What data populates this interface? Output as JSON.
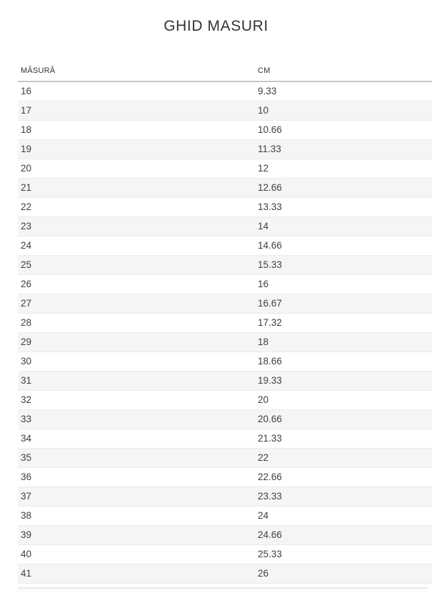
{
  "title": "GHID MASURI",
  "table": {
    "columns": [
      "MĂSURĂ",
      "CM"
    ],
    "rows": [
      [
        "16",
        "9.33"
      ],
      [
        "17",
        "10"
      ],
      [
        "18",
        "10.66"
      ],
      [
        "19",
        "11.33"
      ],
      [
        "20",
        "12"
      ],
      [
        "21",
        "12.66"
      ],
      [
        "22",
        "13.33"
      ],
      [
        "23",
        "14"
      ],
      [
        "24",
        "14.66"
      ],
      [
        "25",
        "15.33"
      ],
      [
        "26",
        "16"
      ],
      [
        "27",
        "16.67"
      ],
      [
        "28",
        "17.32"
      ],
      [
        "29",
        "18"
      ],
      [
        "30",
        "18.66"
      ],
      [
        "31",
        "19.33"
      ],
      [
        "32",
        "20"
      ],
      [
        "33",
        "20.66"
      ],
      [
        "34",
        "21.33"
      ],
      [
        "35",
        "22"
      ],
      [
        "36",
        "22.66"
      ],
      [
        "37",
        "23.33"
      ],
      [
        "38",
        "24"
      ],
      [
        "39",
        "24.66"
      ],
      [
        "40",
        "25.33"
      ],
      [
        "41",
        "26"
      ]
    ]
  },
  "colors": {
    "stripe": "#f5f5f6",
    "row_border": "#ebebeb",
    "header_border": "#c9c9c9",
    "text": "#404040",
    "title_text": "#333333"
  }
}
